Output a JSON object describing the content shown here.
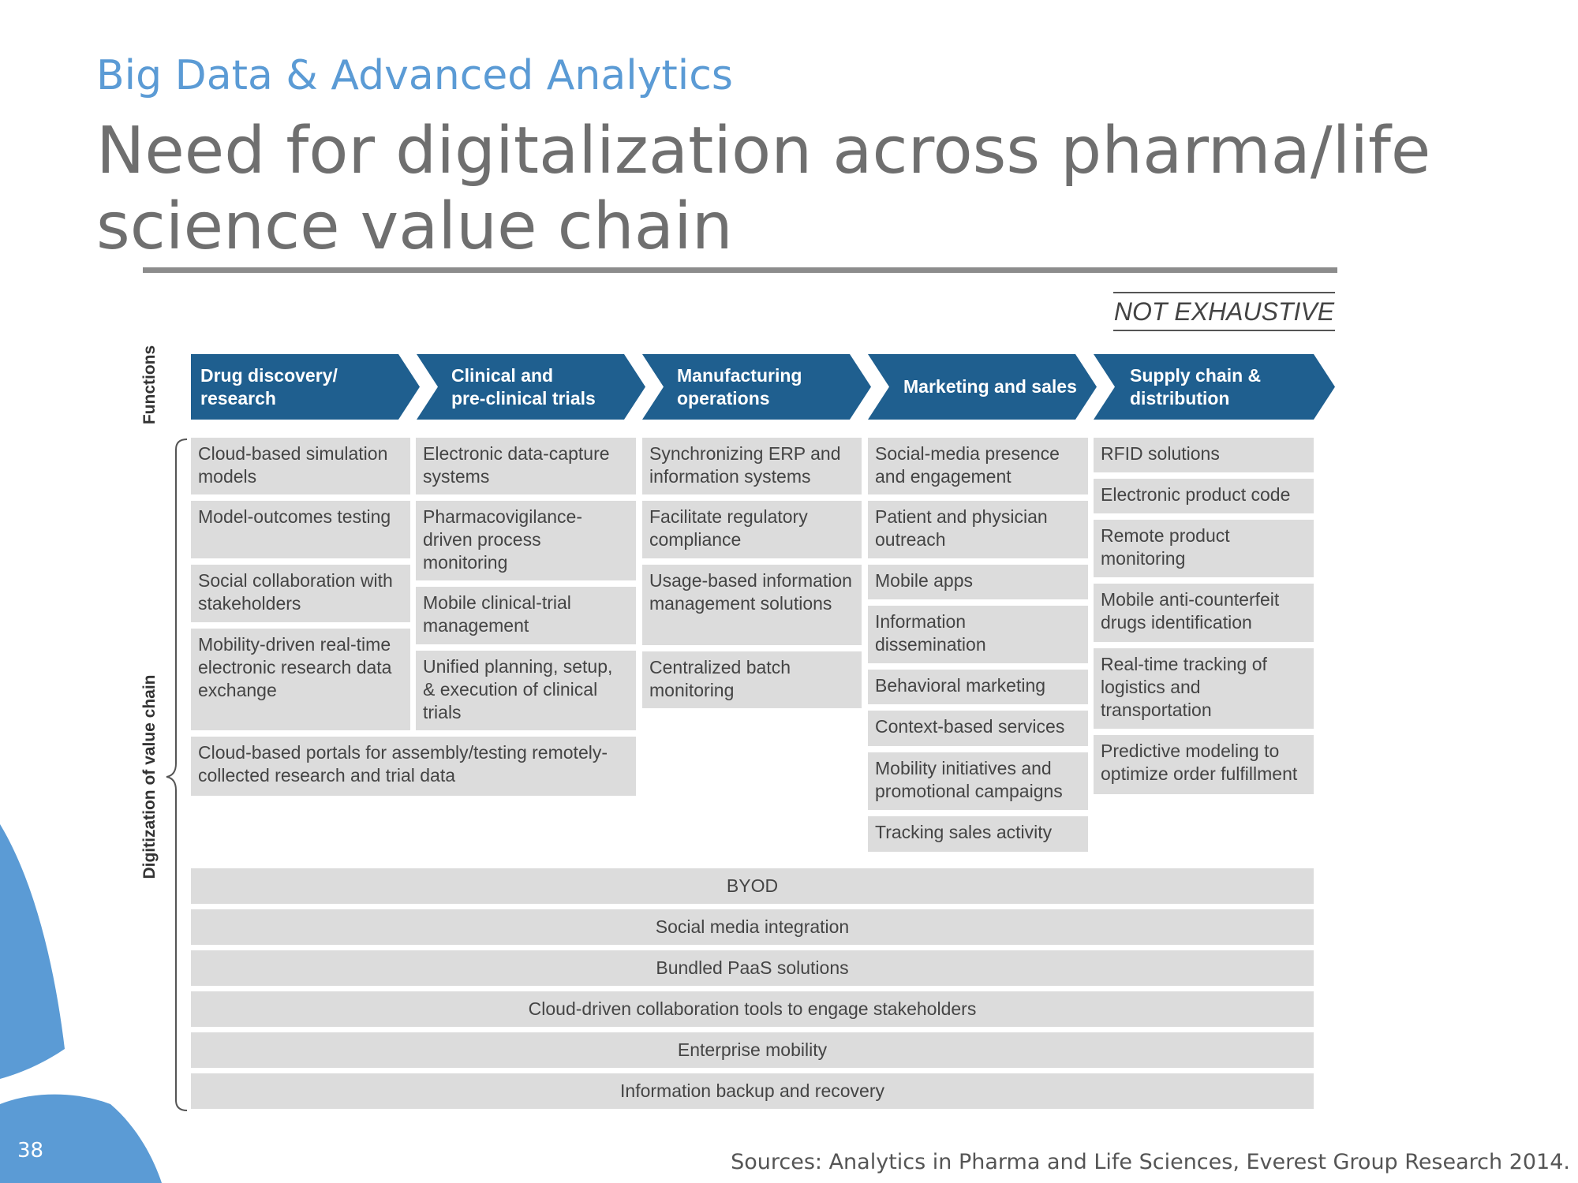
{
  "header": {
    "subtitle": "Big Data & Advanced Analytics",
    "title": "Need for digitalization across pharma/life science value chain"
  },
  "badge": "NOT EXHAUSTIVE",
  "axis_labels": {
    "functions": "Functions",
    "digitization": "Digitization of value chain"
  },
  "functions": [
    {
      "label": "Drug discovery/\nresearch"
    },
    {
      "label": "Clinical and\npre-clinical trials"
    },
    {
      "label": "Manufacturing\noperations"
    },
    {
      "label": "Marketing and sales"
    },
    {
      "label": "Supply chain &\ndistribution"
    }
  ],
  "columns": {
    "drug_discovery": [
      "Cloud-based simulation models",
      "Model-outcomes testing",
      "Social collaboration with stakeholders",
      "Mobility-driven real-time electronic research data exchange"
    ],
    "clinical": [
      "Electronic data-capture systems",
      "Pharmacovigilance-driven process monitoring",
      "Mobile clinical-trial management",
      "Unified planning, setup, & execution of clinical trials"
    ],
    "shared_research_clinical": "Cloud-based portals for assembly/testing remotely-collected research and trial data",
    "manufacturing": [
      "Synchronizing ERP and information systems",
      "Facilitate regulatory compliance",
      "Usage-based information management solutions",
      "Centralized batch monitoring"
    ],
    "marketing": [
      "Social-media presence and engagement",
      "Patient and physician outreach",
      "Mobile apps",
      "Information dissemination",
      "Behavioral marketing",
      "Context-based services",
      "Mobility initiatives and promotional campaigns",
      "Tracking sales activity"
    ],
    "supply_chain": [
      "RFID solutions",
      "Electronic product code",
      "Remote product monitoring",
      "Mobile anti-counterfeit drugs identification",
      "Real-time tracking of logistics and transportation",
      "Predictive modeling to optimize order fulfillment"
    ]
  },
  "cross_functional": [
    "BYOD",
    "Social media integration",
    "Bundled PaaS solutions",
    "Cloud-driven collaboration tools to engage stakeholders",
    "Enterprise mobility",
    "Information backup and recovery"
  ],
  "sources": "Sources: Analytics in Pharma and Life Sciences, Everest Group Research 2014.",
  "page_number": "38",
  "colors": {
    "accent": "#5b9bd5",
    "chevron": "#1f5f8f",
    "cell": "#dcdcdc"
  }
}
